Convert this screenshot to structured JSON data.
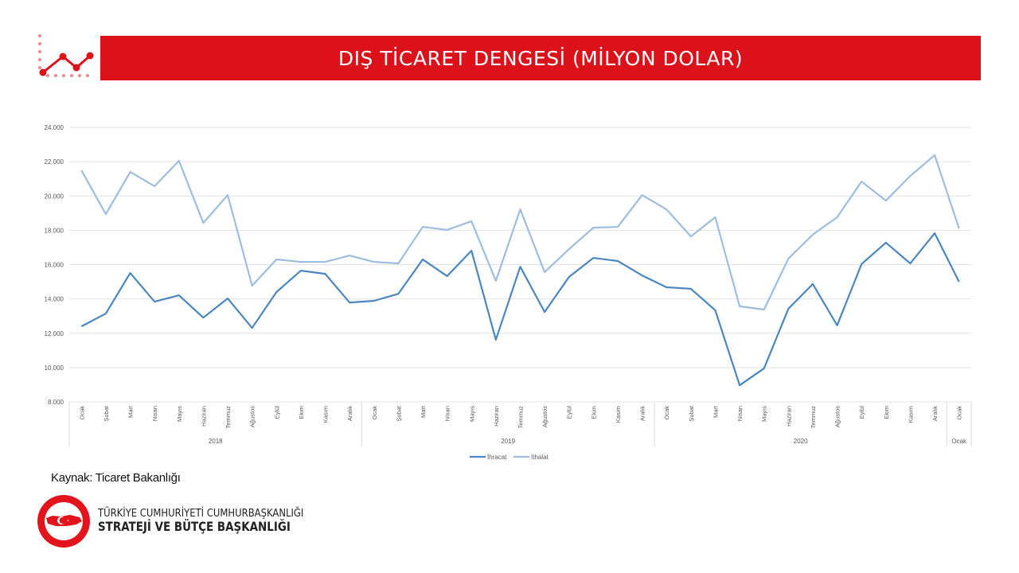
{
  "header": {
    "title": "DIŞ TİCARET DENGESİ (MİLYON DOLAR)"
  },
  "colors": {
    "brand_red": "#dc111a",
    "ihracat": "#4a86c0",
    "ithalat": "#9dbde0"
  },
  "chart_data": {
    "type": "line",
    "title": "",
    "xlabel": "",
    "ylabel": "",
    "ylim": [
      8000,
      24000
    ],
    "yticks": [
      "8.000",
      "10.000",
      "12.000",
      "14.000",
      "16.000",
      "18.000",
      "20.000",
      "22.000",
      "24.000"
    ],
    "grid": true,
    "legend": "bottom",
    "categories": [
      "Ocak",
      "Şubat",
      "Mart",
      "Nisan",
      "Mayıs",
      "Haziran",
      "Temmuz",
      "Ağustos",
      "Eylül",
      "Ekim",
      "Kasım",
      "Aralık",
      "Ocak",
      "Şubat",
      "Mart",
      "Nisan",
      "Mayıs",
      "Haziran",
      "Temmuz",
      "Ağustos",
      "Eylül",
      "Ekim",
      "Kasım",
      "Aralık",
      "Ocak",
      "Şubat",
      "Mart",
      "Nisan",
      "Mayıs",
      "Haziran",
      "Temmuz",
      "Ağustos",
      "Eylül",
      "Ekim",
      "Kasım",
      "Aralık",
      "Ocak"
    ],
    "groups": [
      {
        "label": "2018",
        "count": 12
      },
      {
        "label": "2019",
        "count": 12
      },
      {
        "label": "2020",
        "count": 12
      },
      {
        "label": "Ocak",
        "count": 1
      }
    ],
    "series": [
      {
        "name": "İhracat",
        "values": [
          12400,
          13150,
          15510,
          13840,
          14210,
          12910,
          14030,
          12310,
          14400,
          15650,
          15460,
          13790,
          13890,
          14300,
          16300,
          15330,
          16810,
          11620,
          15880,
          13240,
          15280,
          16390,
          16210,
          15370,
          14680,
          14590,
          13340,
          8970,
          9950,
          13430,
          14870,
          12460,
          16030,
          17280,
          16070,
          17830,
          15000
        ]
      },
      {
        "name": "İthalat",
        "values": [
          21500,
          18940,
          21400,
          20570,
          22050,
          18430,
          20050,
          14770,
          16300,
          16160,
          16160,
          16530,
          16160,
          16070,
          18200,
          18020,
          18530,
          15050,
          19220,
          15560,
          16900,
          18150,
          18200,
          20050,
          19220,
          17640,
          18760,
          13570,
          13380,
          16350,
          17750,
          18760,
          20840,
          19730,
          21170,
          22380,
          18110
        ]
      }
    ]
  },
  "footer": {
    "source": "Kaynak: Ticaret Bakanlığı",
    "org_line1": "TÜRKİYE CUMHURİYETİ CUMHURBAŞKANLIĞI",
    "org_line2": "STRATEJİ VE BÜTÇE BAŞKANLIĞI",
    "seal_text": "T.C. CUMHURBAŞKANLIĞI STRATEJİ VE BÜTÇE BAŞKANLIĞI"
  }
}
